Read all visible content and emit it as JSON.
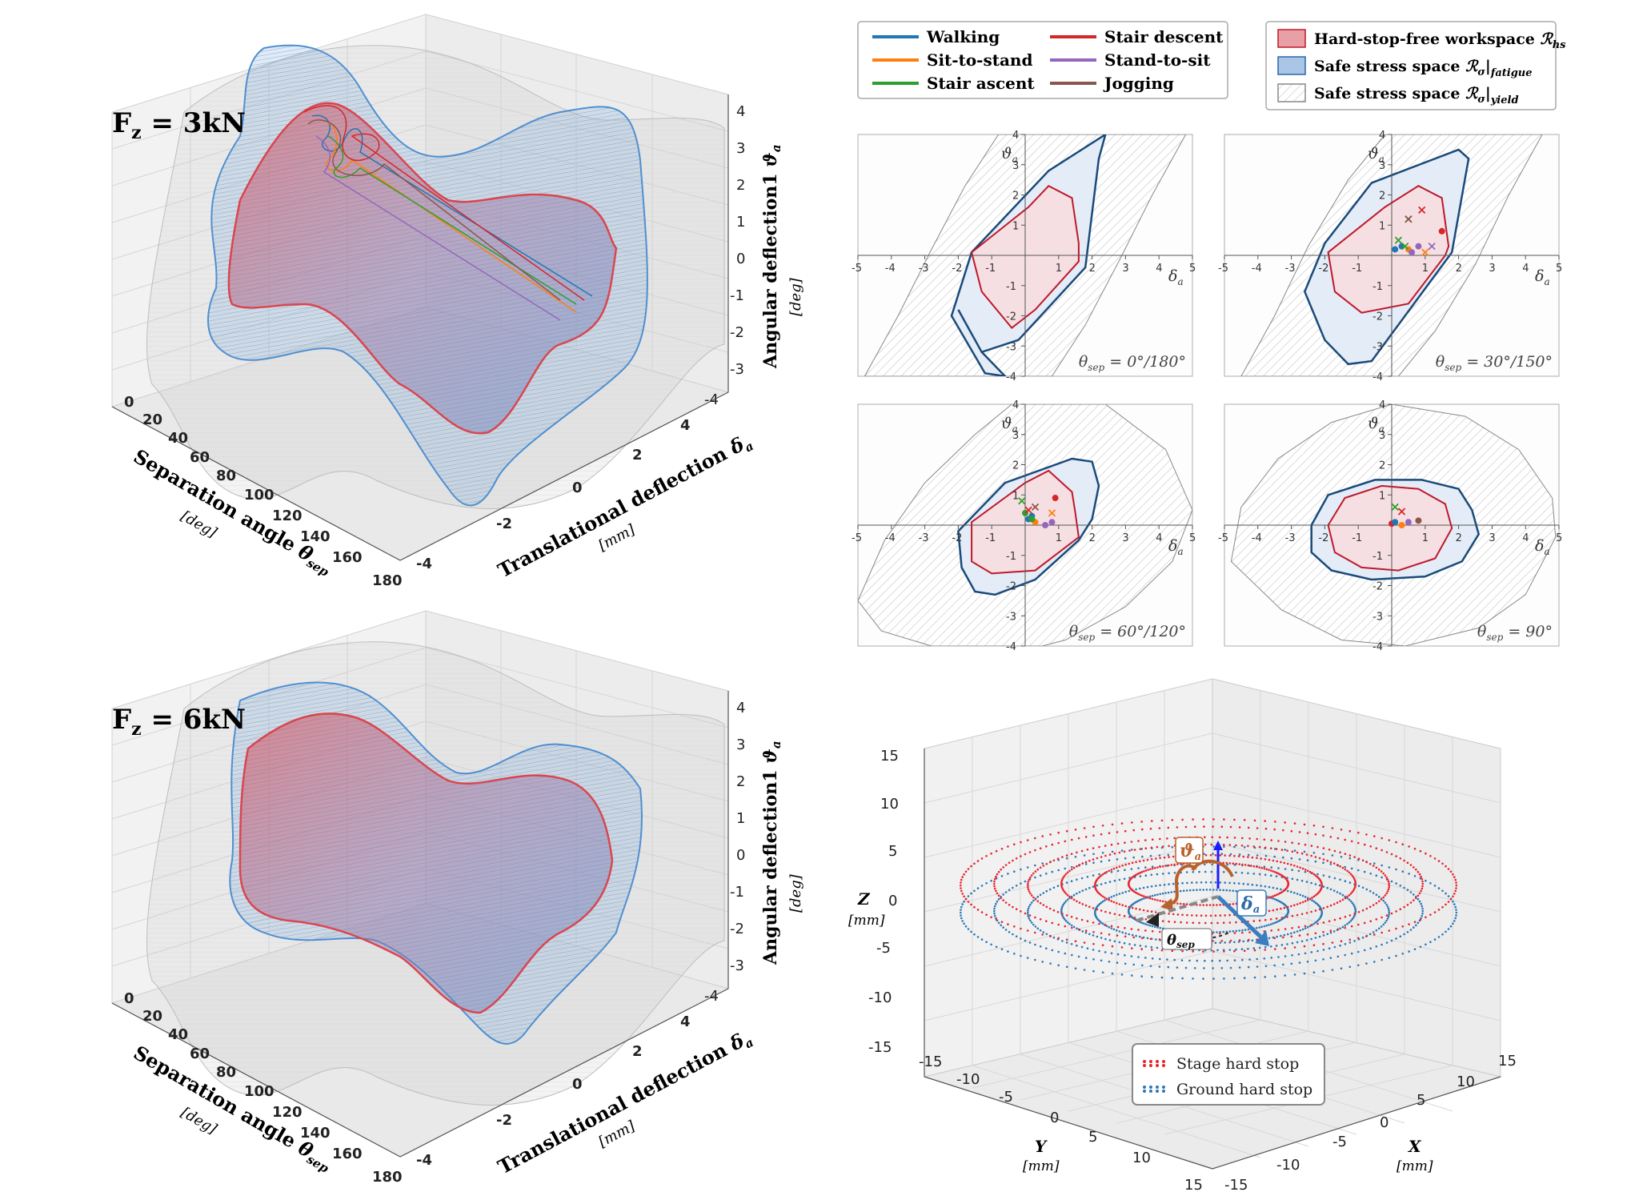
{
  "colors": {
    "walking": "#1f77b4",
    "sit_to_stand": "#ff7f0e",
    "stair_ascent": "#2ca02c",
    "stair_descent": "#d62728",
    "stand_to_sit": "#9467bd",
    "jogging": "#8c564b",
    "hs_fill": "#f6dfe2",
    "hs_edge": "#c0182a",
    "fatigue_fill": "#e3ecf7",
    "fatigue_edge": "#1a4a7a",
    "yield_edge": "#888888",
    "stage": "#e8252f",
    "ground": "#2b78b8"
  },
  "panels_3d": [
    {
      "label": "F",
      "label_sub": "z",
      "label_rest": " = 3kN",
      "z_label": "Angular deflection1",
      "z_symbol": "ϑ",
      "z_symbol_sub": "a",
      "z_unit": "[deg]",
      "x_label": "Separation angle",
      "x_symbol": "θ",
      "x_symbol_sub": "sep",
      "x_unit": "[deg]",
      "y_label": "Translational deflection",
      "y_symbol": "δ",
      "y_symbol_sub": "a",
      "y_unit": "[mm]",
      "x_ticks": [
        "0",
        "20",
        "40",
        "60",
        "80",
        "100",
        "120",
        "140",
        "160",
        "180"
      ],
      "y_ticks": [
        "-4",
        "-2",
        "0",
        "2",
        "4"
      ],
      "z_ticks": [
        "4",
        "3",
        "2",
        "1",
        "0",
        "-1",
        "-2",
        "-3",
        "-4"
      ]
    },
    {
      "label": "F",
      "label_sub": "z",
      "label_rest": " = 6kN",
      "z_label": "Angular deflection1",
      "z_symbol": "ϑ",
      "z_symbol_sub": "a",
      "z_unit": "[deg]",
      "x_label": "Separation angle",
      "x_symbol": "θ",
      "x_symbol_sub": "sep",
      "x_unit": "[deg]",
      "y_label": "Translational deflection",
      "y_symbol": "δ",
      "y_symbol_sub": "a",
      "y_unit": "[mm]",
      "x_ticks": [
        "0",
        "20",
        "40",
        "60",
        "80",
        "100",
        "120",
        "140",
        "160",
        "180"
      ],
      "y_ticks": [
        "-4",
        "-2",
        "0",
        "2",
        "4"
      ],
      "z_ticks": [
        "4",
        "3",
        "2",
        "1",
        "0",
        "-1",
        "-2",
        "-3",
        "-4"
      ]
    }
  ],
  "legend_activities": [
    {
      "name": "Walking",
      "color": "#1f77b4"
    },
    {
      "name": "Sit-to-stand",
      "color": "#ff7f0e"
    },
    {
      "name": "Stair ascent",
      "color": "#2ca02c"
    },
    {
      "name": "Stair descent",
      "color": "#d62728"
    },
    {
      "name": "Stand-to-sit",
      "color": "#9467bd"
    },
    {
      "name": "Jogging",
      "color": "#8c564b"
    }
  ],
  "legend_spaces": [
    {
      "text": "Hard-stop-free workspace ",
      "symbol": "ℛ",
      "sub": "hs",
      "kind": "hs"
    },
    {
      "text": "Safe stress space ",
      "symbol": "ℛ",
      "sym2": "σ",
      "bar": "|",
      "sub": "fatigue",
      "kind": "fatigue"
    },
    {
      "text": "Safe stress space ",
      "symbol": "ℛ",
      "sym2": "σ",
      "bar": "|",
      "sub": "yield",
      "kind": "yield"
    }
  ],
  "chart_data": [
    {
      "type": "area",
      "title": "θsep = 0°/180°",
      "theta_label": "θ",
      "theta_sub": "sep",
      "theta_value": " = 0°/180°",
      "xlabel": "δa",
      "ylabel": "ϑa",
      "xlim": [
        -5,
        5
      ],
      "ylim": [
        -4,
        4
      ],
      "x_ticks": [
        "-5",
        "-4",
        "-3",
        "-2",
        "-1",
        "1",
        "2",
        "3",
        "4",
        "5"
      ],
      "y_ticks": [
        "4",
        "3",
        "2",
        "1",
        "-1",
        "-2",
        "-3",
        "-4"
      ],
      "hs_polygon": [
        [
          -1.6,
          0.1
        ],
        [
          -1.3,
          -1.2
        ],
        [
          -0.4,
          -2.4
        ],
        [
          0.3,
          -1.8
        ],
        [
          1.6,
          -0.2
        ],
        [
          1.6,
          0.4
        ],
        [
          1.4,
          1.9
        ],
        [
          0.7,
          2.3
        ],
        [
          0.1,
          1.6
        ],
        [
          -1.6,
          0.1
        ]
      ],
      "fatigue_polygon": [
        [
          -2.0,
          -1.8
        ],
        [
          -1.3,
          -3.2
        ],
        [
          -0.6,
          -4.0
        ],
        [
          -1.2,
          -3.9
        ],
        [
          -2.2,
          -2.0
        ],
        [
          -1.6,
          0.1
        ],
        [
          0.7,
          2.8
        ],
        [
          2.4,
          4.0
        ],
        [
          2.2,
          3.2
        ],
        [
          1.8,
          -0.4
        ],
        [
          -0.2,
          -2.8
        ],
        [
          -1.3,
          -3.2
        ]
      ],
      "yield_polygon": [
        [
          -4.8,
          -4.0
        ],
        [
          -3.8,
          -2.0
        ],
        [
          -2.8,
          0.2
        ],
        [
          -1.8,
          2.3
        ],
        [
          -0.8,
          4.0
        ],
        [
          4.8,
          4.0
        ],
        [
          3.8,
          2.0
        ],
        [
          2.8,
          -0.2
        ],
        [
          1.8,
          -2.3
        ],
        [
          0.8,
          -4.0
        ]
      ],
      "markers": []
    },
    {
      "type": "area",
      "title": "θsep = 30°/150°",
      "theta_label": "θ",
      "theta_sub": "sep",
      "theta_value": " = 30°/150°",
      "xlabel": "δa",
      "ylabel": "ϑa",
      "xlim": [
        -5,
        5
      ],
      "ylim": [
        -4,
        4
      ],
      "x_ticks": [
        "-5",
        "-4",
        "-3",
        "-2",
        "-1",
        "1",
        "2",
        "3",
        "4",
        "5"
      ],
      "y_ticks": [
        "4",
        "3",
        "2",
        "1",
        "-1",
        "-2",
        "-3",
        "-4"
      ],
      "hs_polygon": [
        [
          -1.9,
          0.1
        ],
        [
          -1.7,
          -1.2
        ],
        [
          -0.9,
          -1.9
        ],
        [
          0.5,
          -1.6
        ],
        [
          1.6,
          0.0
        ],
        [
          1.7,
          0.3
        ],
        [
          1.5,
          1.9
        ],
        [
          0.8,
          2.3
        ],
        [
          -0.2,
          1.6
        ],
        [
          -1.9,
          0.1
        ]
      ],
      "fatigue_polygon": [
        [
          -2.6,
          -1.2
        ],
        [
          -2.0,
          -2.8
        ],
        [
          -1.3,
          -3.6
        ],
        [
          -0.6,
          -3.5
        ],
        [
          1.8,
          0.1
        ],
        [
          2.3,
          3.2
        ],
        [
          2.0,
          3.5
        ],
        [
          -0.6,
          2.4
        ],
        [
          -2.0,
          0.4
        ],
        [
          -2.6,
          -1.2
        ]
      ],
      "yield_polygon": [
        [
          -4.5,
          -4.0
        ],
        [
          -3.5,
          -2.0
        ],
        [
          -2.5,
          0.3
        ],
        [
          -1.3,
          2.5
        ],
        [
          -0.2,
          4.0
        ],
        [
          4.5,
          4.0
        ],
        [
          3.5,
          2.0
        ],
        [
          2.5,
          -0.3
        ],
        [
          1.3,
          -2.5
        ],
        [
          0.2,
          -4.0
        ]
      ],
      "markers": [
        {
          "x": 0.3,
          "y": 0.3,
          "m": "o",
          "c": "#1f77b4"
        },
        {
          "x": 0.5,
          "y": 0.2,
          "m": "o",
          "c": "#ff7f0e"
        },
        {
          "x": 0.2,
          "y": 0.5,
          "m": "x",
          "c": "#2ca02c"
        },
        {
          "x": 0.4,
          "y": 0.3,
          "m": "x",
          "c": "#2ca02c"
        },
        {
          "x": 0.6,
          "y": 0.1,
          "m": "o",
          "c": "#9467bd"
        },
        {
          "x": 0.8,
          "y": 0.3,
          "m": "o",
          "c": "#9467bd"
        },
        {
          "x": 0.5,
          "y": 1.2,
          "m": "x",
          "c": "#2ca02c"
        },
        {
          "x": 0.5,
          "y": 1.2,
          "m": "x",
          "c": "#8c564b"
        },
        {
          "x": 0.9,
          "y": 1.5,
          "m": "x",
          "c": "#d62728"
        },
        {
          "x": 1.5,
          "y": 0.8,
          "m": "o",
          "c": "#d62728"
        },
        {
          "x": 1.2,
          "y": 0.3,
          "m": "x",
          "c": "#9467bd"
        },
        {
          "x": 1.0,
          "y": 0.1,
          "m": "x",
          "c": "#ff7f0e"
        },
        {
          "x": 0.1,
          "y": 0.2,
          "m": "o",
          "c": "#1f77b4"
        }
      ]
    },
    {
      "type": "area",
      "title": "θsep = 60°/120°",
      "theta_label": "θ",
      "theta_sub": "sep",
      "theta_value": " = 60°/120°",
      "xlabel": "δa",
      "ylabel": "ϑa",
      "xlim": [
        -5,
        5
      ],
      "ylim": [
        -4,
        4
      ],
      "x_ticks": [
        "-5",
        "-4",
        "-3",
        "-2",
        "-1",
        "1",
        "2",
        "3",
        "4",
        "5"
      ],
      "y_ticks": [
        "4",
        "3",
        "2",
        "1",
        "-1",
        "-2",
        "-3",
        "-4"
      ],
      "hs_polygon": [
        [
          -1.6,
          0.1
        ],
        [
          -1.6,
          -1.2
        ],
        [
          -1.0,
          -1.6
        ],
        [
          0.3,
          -1.5
        ],
        [
          1.6,
          -0.4
        ],
        [
          1.5,
          0.4
        ],
        [
          1.4,
          1.1
        ],
        [
          0.7,
          1.8
        ],
        [
          0.0,
          1.4
        ],
        [
          -1.6,
          0.1
        ]
      ],
      "fatigue_polygon": [
        [
          -2.0,
          -0.2
        ],
        [
          -1.9,
          -1.4
        ],
        [
          -1.5,
          -2.2
        ],
        [
          -0.9,
          -2.3
        ],
        [
          0.3,
          -1.8
        ],
        [
          1.6,
          -0.5
        ],
        [
          2.0,
          0.2
        ],
        [
          2.2,
          1.3
        ],
        [
          2.0,
          2.1
        ],
        [
          1.4,
          2.2
        ],
        [
          -0.6,
          1.4
        ],
        [
          -2.0,
          -0.2
        ]
      ],
      "yield_polygon": [
        [
          -5.0,
          -2.5
        ],
        [
          -4.2,
          -0.5
        ],
        [
          -3.0,
          1.4
        ],
        [
          -1.5,
          3.0
        ],
        [
          -0.4,
          4.0
        ],
        [
          2.4,
          4.0
        ],
        [
          4.2,
          2.5
        ],
        [
          5.0,
          0.5
        ],
        [
          4.4,
          -1.2
        ],
        [
          3.0,
          -2.7
        ],
        [
          1.2,
          -3.8
        ],
        [
          0.5,
          -4.0
        ],
        [
          -2.8,
          -4.0
        ],
        [
          -4.3,
          -3.5
        ]
      ],
      "markers": [
        {
          "x": 0.1,
          "y": 0.2,
          "m": "o",
          "c": "#1f77b4"
        },
        {
          "x": 0.3,
          "y": 0.1,
          "m": "o",
          "c": "#ff7f0e"
        },
        {
          "x": 0.0,
          "y": 0.4,
          "m": "o",
          "c": "#2ca02c"
        },
        {
          "x": 0.2,
          "y": 0.3,
          "m": "o",
          "c": "#1f77b4"
        },
        {
          "x": 0.6,
          "y": 0.0,
          "m": "o",
          "c": "#9467bd"
        },
        {
          "x": 0.8,
          "y": 0.1,
          "m": "o",
          "c": "#9467bd"
        },
        {
          "x": -0.1,
          "y": 0.8,
          "m": "x",
          "c": "#2ca02c"
        },
        {
          "x": 0.3,
          "y": 0.6,
          "m": "x",
          "c": "#8c564b"
        },
        {
          "x": 0.8,
          "y": 0.4,
          "m": "x",
          "c": "#ff7f0e"
        },
        {
          "x": 0.1,
          "y": 0.5,
          "m": "x",
          "c": "#d62728"
        },
        {
          "x": 0.9,
          "y": 0.9,
          "m": "o",
          "c": "#d62728"
        },
        {
          "x": 0.2,
          "y": 0.2,
          "m": "o",
          "c": "#2ca02c"
        }
      ]
    },
    {
      "type": "area",
      "title": "θsep = 90°",
      "theta_label": "θ",
      "theta_sub": "sep",
      "theta_value": " = 90°",
      "xlabel": "δa",
      "ylabel": "ϑa",
      "xlim": [
        -5,
        5
      ],
      "ylim": [
        -4,
        4
      ],
      "x_ticks": [
        "-5",
        "-4",
        "-3",
        "-2",
        "-1",
        "1",
        "2",
        "3",
        "4",
        "5"
      ],
      "y_ticks": [
        "4",
        "3",
        "2",
        "1",
        "-1",
        "-2",
        "-3",
        "-4"
      ],
      "hs_polygon": [
        [
          -1.9,
          0.0
        ],
        [
          -1.7,
          -0.9
        ],
        [
          -0.9,
          -1.4
        ],
        [
          0.2,
          -1.5
        ],
        [
          1.3,
          -1.1
        ],
        [
          1.8,
          -0.1
        ],
        [
          1.6,
          0.7
        ],
        [
          0.8,
          1.2
        ],
        [
          -0.3,
          1.3
        ],
        [
          -1.4,
          0.9
        ],
        [
          -1.9,
          0.0
        ]
      ],
      "fatigue_polygon": [
        [
          -2.4,
          0.0
        ],
        [
          -2.4,
          -0.9
        ],
        [
          -1.8,
          -1.5
        ],
        [
          -0.6,
          -1.8
        ],
        [
          1.0,
          -1.7
        ],
        [
          2.1,
          -1.2
        ],
        [
          2.6,
          -0.3
        ],
        [
          2.4,
          0.5
        ],
        [
          2.0,
          1.2
        ],
        [
          0.9,
          1.5
        ],
        [
          -0.5,
          1.5
        ],
        [
          -1.9,
          1.0
        ],
        [
          -2.4,
          0.0
        ]
      ],
      "yield_polygon": [
        [
          -4.8,
          -1.2
        ],
        [
          -4.5,
          0.6
        ],
        [
          -3.4,
          2.2
        ],
        [
          -1.8,
          3.4
        ],
        [
          0.0,
          4.0
        ],
        [
          2.2,
          3.6
        ],
        [
          3.8,
          2.5
        ],
        [
          4.8,
          0.9
        ],
        [
          4.9,
          -0.4
        ],
        [
          4.0,
          -2.3
        ],
        [
          2.6,
          -3.4
        ],
        [
          0.4,
          -4.0
        ],
        [
          -1.5,
          -3.8
        ],
        [
          -3.3,
          -2.8
        ]
      ],
      "markers": [
        {
          "x": 0.0,
          "y": 0.05,
          "m": "o",
          "c": "#d62728"
        },
        {
          "x": 0.3,
          "y": 0.0,
          "m": "o",
          "c": "#ff7f0e"
        },
        {
          "x": 0.5,
          "y": 0.1,
          "m": "o",
          "c": "#9467bd"
        },
        {
          "x": 0.8,
          "y": 0.15,
          "m": "o",
          "c": "#8c564b"
        },
        {
          "x": 0.1,
          "y": 0.6,
          "m": "x",
          "c": "#2ca02c"
        },
        {
          "x": 0.3,
          "y": 0.45,
          "m": "x",
          "c": "#d62728"
        },
        {
          "x": 0.1,
          "y": 0.1,
          "m": "o",
          "c": "#1f77b4"
        }
      ]
    },
    {
      "type": "scatter",
      "title": "",
      "xlabel": "X",
      "x_unit": "[mm]",
      "ylabel": "Y",
      "y_unit": "[mm]",
      "zlabel": "Z",
      "z_unit": "[mm]",
      "xlim": [
        -15,
        15
      ],
      "ylim": [
        -15,
        15
      ],
      "zlim": [
        -15,
        15
      ],
      "x_ticks": [
        "-15",
        "-10",
        "-5",
        "0",
        "5",
        "10",
        "15"
      ],
      "y_ticks": [
        "-15",
        "-10",
        "-5",
        "0",
        "5",
        "10",
        "15"
      ],
      "z_ticks": [
        "15",
        "10",
        "5",
        "0",
        "-5",
        "-10",
        "-15"
      ],
      "series": [
        {
          "name": "Stage hard stop",
          "color": "#e8252f"
        },
        {
          "name": "Ground hard stop",
          "color": "#2b78b8"
        }
      ],
      "annotations": {
        "theta_a": "ϑ",
        "theta_a_sub": "a",
        "delta_a": "δ",
        "delta_a_sub": "a",
        "theta_sep": "θ",
        "theta_sep_sub": "sep"
      }
    }
  ]
}
